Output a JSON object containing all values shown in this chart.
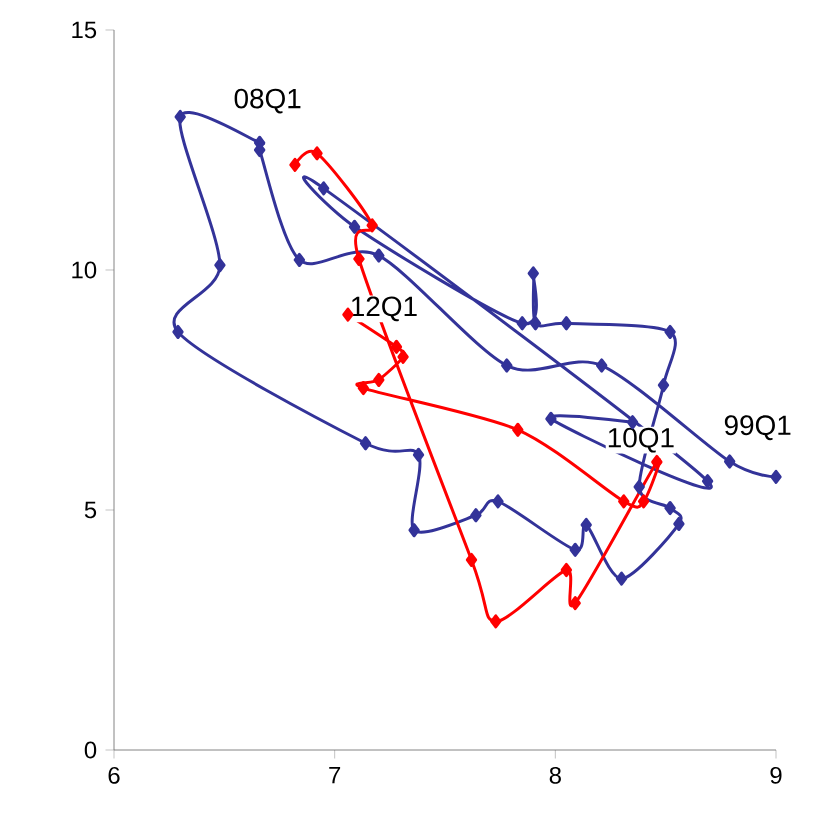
{
  "chart_data": {
    "type": "line",
    "xlim": [
      6,
      9
    ],
    "ylim": [
      0,
      15
    ],
    "xticks": [
      6,
      7,
      8,
      9
    ],
    "yticks": [
      0,
      5,
      10,
      15
    ],
    "marker": "diamond",
    "line_style": "solid",
    "series": [
      {
        "color": "#333399",
        "x": [
          9.0,
          8.79,
          8.21,
          7.78,
          7.2,
          6.84,
          6.66,
          6.66,
          6.3,
          6.48,
          6.29,
          7.14,
          7.38,
          7.36,
          7.64,
          7.74,
          8.09,
          8.14,
          8.3,
          8.56,
          8.52,
          8.38,
          8.49,
          8.52,
          8.05,
          7.91,
          7.9,
          7.85,
          7.09,
          6.95,
          8.69,
          7.98,
          8.35
        ],
        "values": [
          5.69,
          6.01,
          8.01,
          8.01,
          10.3,
          10.21,
          12.5,
          12.65,
          13.19,
          10.1,
          8.71,
          6.39,
          6.15,
          4.58,
          4.89,
          5.18,
          4.17,
          4.69,
          3.57,
          4.71,
          5.04,
          5.48,
          7.6,
          8.71,
          8.89,
          8.89,
          9.93,
          8.89,
          10.9,
          11.7,
          5.6,
          6.9,
          6.83
        ]
      },
      {
        "color": "#ff0000",
        "x": [
          6.82,
          6.92,
          7.17,
          7.11,
          7.62,
          7.73,
          8.05,
          8.09,
          8.46,
          8.4,
          8.31,
          7.83,
          7.13,
          7.2,
          7.31,
          7.28,
          7.06
        ],
        "values": [
          12.19,
          12.43,
          10.93,
          10.23,
          3.96,
          2.68,
          3.75,
          3.06,
          6.0,
          5.18,
          5.18,
          6.67,
          7.54,
          7.71,
          8.19,
          8.4,
          9.07
        ]
      }
    ],
    "annotations": [
      {
        "text": "08Q1",
        "x": 6.66,
        "y": 12.65
      },
      {
        "text": "12Q1",
        "x": 7.06,
        "y": 9.07
      },
      {
        "text": "10Q1",
        "x": 8.46,
        "y": 6.0
      },
      {
        "text": "99Q1",
        "x": 8.79,
        "y": 6.01
      }
    ]
  }
}
